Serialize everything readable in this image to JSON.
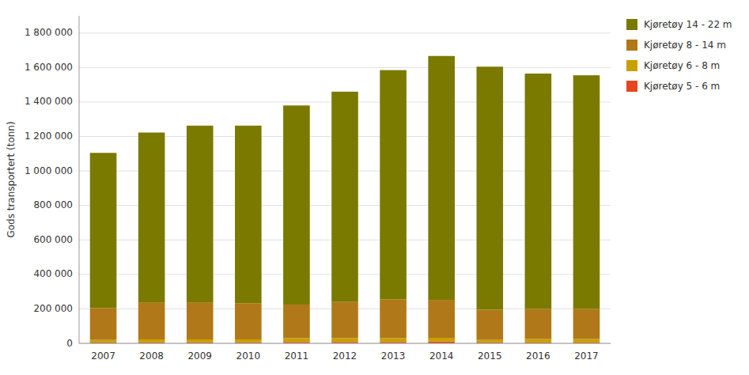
{
  "chart_data": {
    "type": "bar",
    "stacked": true,
    "ylabel": "Gods transportert (tonn)",
    "categories": [
      "2007",
      "2008",
      "2009",
      "2010",
      "2011",
      "2012",
      "2013",
      "2014",
      "2015",
      "2016",
      "2017"
    ],
    "series": [
      {
        "name": "Kjøretøy 5 - 6 m",
        "color": "#e6461e",
        "values": [
          5000,
          5000,
          5000,
          5000,
          8000,
          8000,
          8000,
          10000,
          5000,
          5000,
          5000
        ]
      },
      {
        "name": "Kjøretøy 6 - 8 m",
        "color": "#c8a000",
        "values": [
          15000,
          18000,
          18000,
          18000,
          22000,
          22000,
          22000,
          22000,
          15000,
          20000,
          20000
        ]
      },
      {
        "name": "Kjøretøy 8 - 14 m",
        "color": "#b07818",
        "values": [
          185000,
          215000,
          215000,
          210000,
          195000,
          210000,
          225000,
          220000,
          175000,
          175000,
          175000
        ]
      },
      {
        "name": "Kjøretøy 14 - 22 m",
        "color": "#7a7a00",
        "values": [
          900000,
          985000,
          1025000,
          1030000,
          1155000,
          1220000,
          1330000,
          1415000,
          1410000,
          1365000,
          1355000
        ]
      }
    ],
    "ylim": [
      0,
      1900000
    ],
    "yticks": [
      0,
      {
        "value": 200000,
        "label": "200 000"
      },
      {
        "value": 400000,
        "label": "400 000"
      },
      {
        "value": 600000,
        "label": "600 000"
      },
      {
        "value": 800000,
        "label": "800 000"
      },
      {
        "value": 1000000,
        "label": "1 000 000"
      },
      {
        "value": 1200000,
        "label": "1 200 000"
      },
      {
        "value": 1400000,
        "label": "1 400 000"
      },
      {
        "value": 1600000,
        "label": "1 600 000"
      },
      {
        "value": 1800000,
        "label": "1 800 000"
      }
    ],
    "grid": true,
    "legend": "right"
  }
}
